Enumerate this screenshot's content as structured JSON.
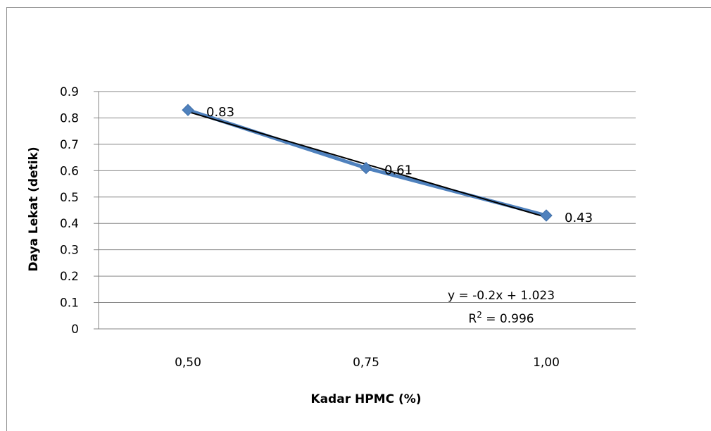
{
  "chart_data": {
    "type": "line",
    "categories": [
      "0,50",
      "0,75",
      "1,00"
    ],
    "x": [
      0.5,
      0.75,
      1.0
    ],
    "series": [
      {
        "values": [
          0.83,
          0.61,
          0.43
        ],
        "color": "#4f81bd",
        "marker": "diamond",
        "data_labels": [
          "0.83",
          "0.61",
          "0.43"
        ]
      }
    ],
    "trendline": {
      "type": "linear",
      "color": "#000000",
      "equation": "y = -0.2x + 1.023",
      "r2_prefix": "R",
      "r2_sup": "2",
      "r2_value": " = 0.996"
    },
    "title": "",
    "xlabel": "Kadar HPMC (%)",
    "ylabel": "Daya Lekat (detik)",
    "ylim": [
      0,
      0.9
    ],
    "yticks": [
      0,
      0.1,
      0.2,
      0.3,
      0.4,
      0.5,
      0.6,
      0.7,
      0.8,
      0.9
    ],
    "ytick_labels": [
      "0",
      "0.1",
      "0.2",
      "0.3",
      "0.4",
      "0.5",
      "0.6",
      "0.7",
      "0.8",
      "0.9"
    ],
    "grid": "horizontal",
    "legend": "none"
  }
}
